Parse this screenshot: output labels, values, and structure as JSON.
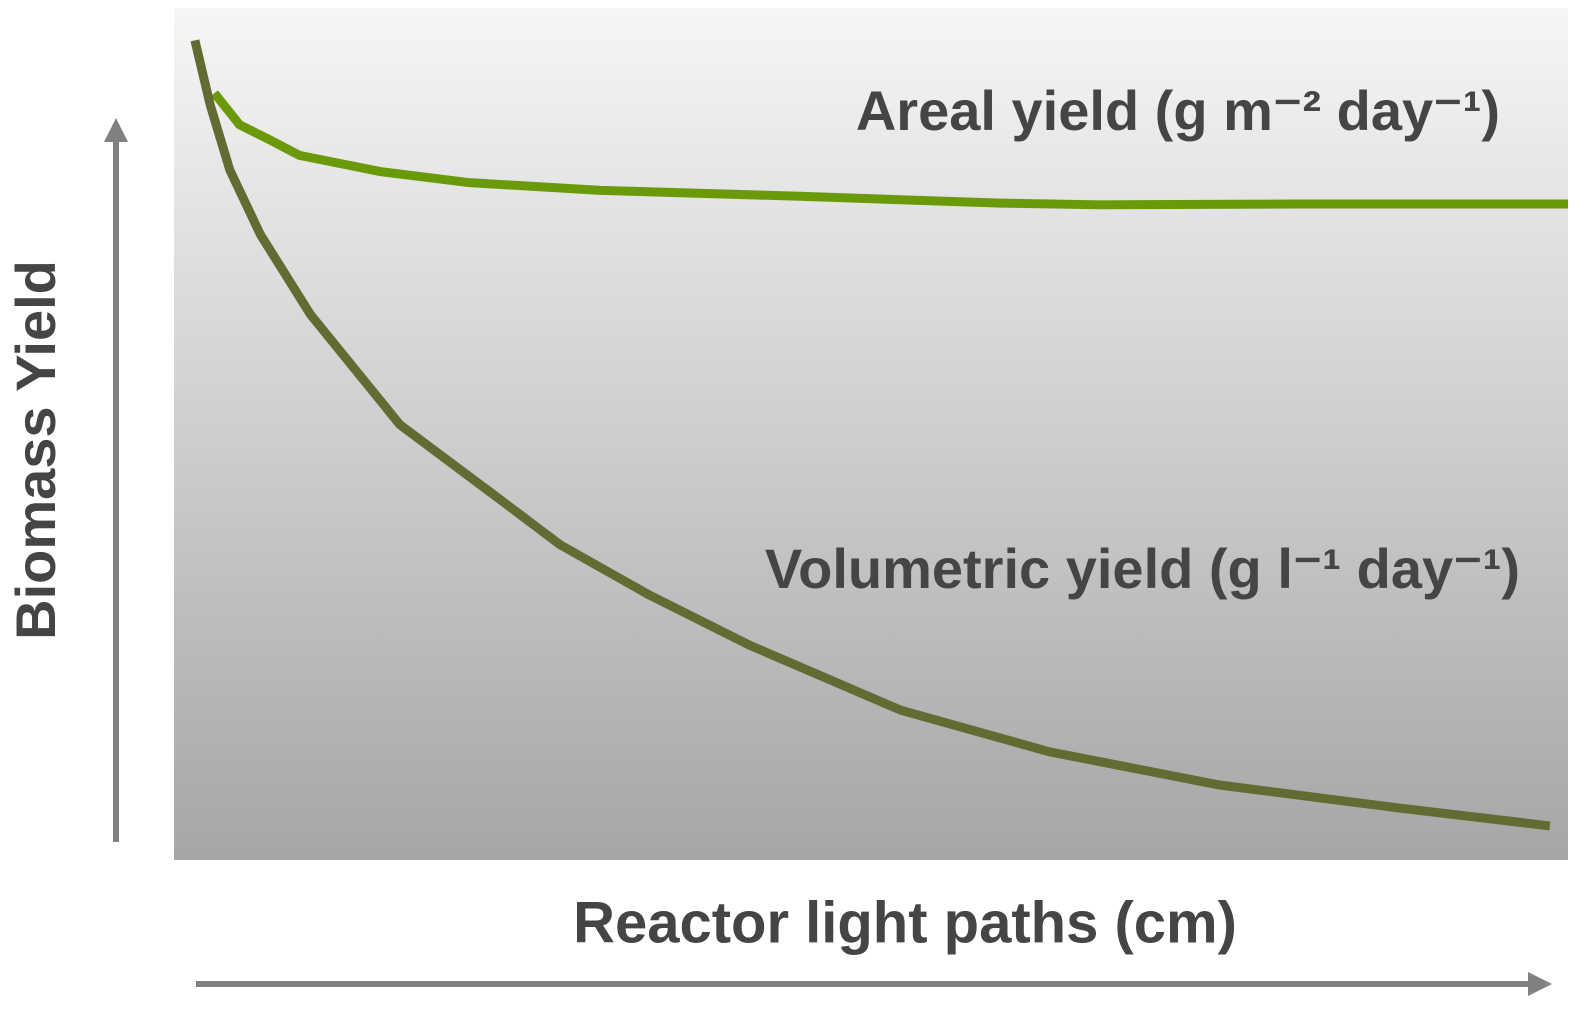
{
  "chart_data": {
    "type": "line",
    "x_label": "Reactor light paths (cm)",
    "y_label": "Biomass Yield",
    "xlim": [
      0,
      100
    ],
    "ylim": [
      0,
      100
    ],
    "series": [
      {
        "name": "Areal yield (g m⁻² day⁻¹)",
        "color": "#6a9a0a",
        "x": [
          2.9,
          4.7,
          6.9,
          9.0,
          14.8,
          21.2,
          30.6,
          44.9,
          59.3,
          66.4,
          80.8,
          100
        ],
        "values": [
          90.0,
          86.3,
          84.5,
          82.7,
          80.8,
          79.5,
          78.6,
          77.9,
          77.1,
          76.9,
          77.0,
          77.0
        ]
      },
      {
        "name": "Volumetric yield (g l⁻¹ day⁻¹)",
        "color": "#636a32",
        "x": [
          1.5,
          2.6,
          4.0,
          6.2,
          9.8,
          16.2,
          23.4,
          27.7,
          34.1,
          41.3,
          52.1,
          62.8,
          75.0,
          87.9,
          98.7
        ],
        "values": [
          96.2,
          88.6,
          81.0,
          73.4,
          64.0,
          51.1,
          42.3,
          37.0,
          31.1,
          25.2,
          17.6,
          12.7,
          8.8,
          6.1,
          4.0
        ]
      }
    ]
  }
}
